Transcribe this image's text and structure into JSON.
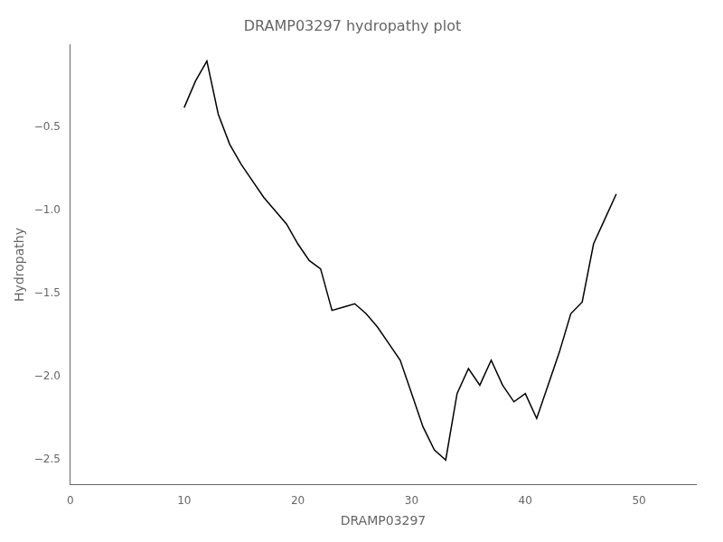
{
  "chart_data": {
    "type": "line",
    "title": "DRAMP03297 hydropathy plot",
    "xlabel": "DRAMP03297",
    "ylabel": "Hydropathy",
    "xlim": [
      0,
      55
    ],
    "ylim": [
      -2.65,
      0.0
    ],
    "xticks": [
      0,
      10,
      20,
      30,
      40,
      50
    ],
    "yticks": [
      {
        "value": -2.5,
        "label": "−2.5"
      },
      {
        "value": -2.0,
        "label": "−2.0"
      },
      {
        "value": -1.5,
        "label": "−1.5"
      },
      {
        "value": -1.0,
        "label": "−1.0"
      },
      {
        "value": -0.5,
        "label": "−0.5"
      }
    ],
    "color": "#000000",
    "grid": false,
    "x": [
      10,
      11,
      12,
      13,
      14,
      15,
      16,
      17,
      18,
      19,
      20,
      21,
      22,
      23,
      24,
      25,
      26,
      27,
      28,
      29,
      30,
      31,
      32,
      33,
      34,
      35,
      36,
      37,
      38,
      39,
      40,
      41,
      42,
      43,
      44,
      45,
      46,
      47,
      48
    ],
    "values": [
      -0.38,
      -0.22,
      -0.1,
      -0.42,
      -0.6,
      -0.72,
      -0.82,
      -0.92,
      -1.0,
      -1.08,
      -1.2,
      -1.3,
      -1.35,
      -1.6,
      -1.58,
      -1.56,
      -1.62,
      -1.7,
      -1.8,
      -1.9,
      -2.1,
      -2.3,
      -2.44,
      -2.5,
      -2.1,
      -1.95,
      -2.05,
      -1.9,
      -2.05,
      -2.15,
      -2.1,
      -2.25,
      -2.05,
      -1.85,
      -1.62,
      -1.55,
      -1.2,
      -1.05,
      -0.9
    ]
  }
}
